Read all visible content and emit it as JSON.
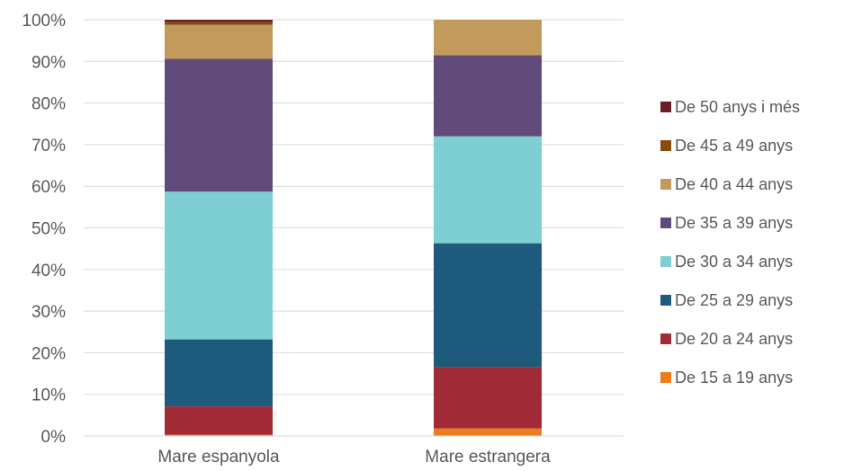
{
  "chart_data": {
    "type": "bar",
    "stacked": true,
    "percent": true,
    "categories": [
      "Mare espanyola",
      "Mare estrangera"
    ],
    "series": [
      {
        "name": "De 15 a 19 anys",
        "color": "#ED7D1A",
        "values": [
          0.3,
          1.8
        ]
      },
      {
        "name": "De 20 a 24 anys",
        "color": "#A12A37",
        "values": [
          6.8,
          14.8
        ]
      },
      {
        "name": "De 25 a 29 anys",
        "color": "#1D5A7C",
        "values": [
          16.1,
          29.7
        ]
      },
      {
        "name": "De 30 a 34 anys",
        "color": "#7DCFD2",
        "values": [
          35.5,
          25.7
        ]
      },
      {
        "name": "De 35 a 39 anys",
        "color": "#604B7A",
        "values": [
          31.9,
          19.5
        ]
      },
      {
        "name": "De 40 a 44 anys",
        "color": "#C29A5B",
        "values": [
          8.2,
          8.5
        ]
      },
      {
        "name": "De 45 a 49 anys",
        "color": "#8A4A0E",
        "values": [
          0.6,
          0.0
        ]
      },
      {
        "name": "De 50 anys i més",
        "color": "#6B1E2A",
        "values": [
          0.6,
          0.0
        ]
      }
    ],
    "yticks": [
      "0%",
      "10%",
      "20%",
      "30%",
      "40%",
      "50%",
      "60%",
      "70%",
      "80%",
      "90%",
      "100%"
    ],
    "ylim": [
      0,
      100
    ],
    "grid": true,
    "legend_position": "right",
    "title": "",
    "xlabel": "",
    "ylabel": ""
  }
}
